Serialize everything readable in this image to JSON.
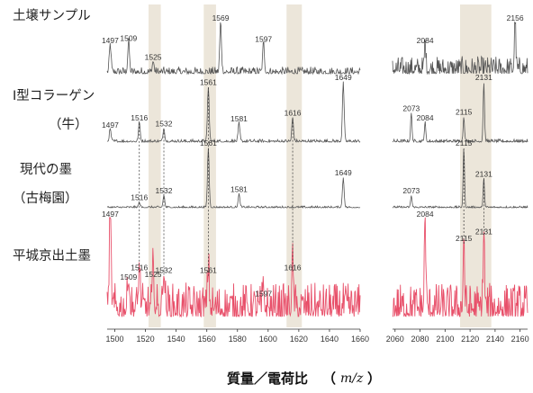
{
  "chart_data": {
    "type": "line",
    "xlabel_main": "質量／電荷比",
    "xlabel_unit_open": "（",
    "xlabel_unit": "m/z",
    "xlabel_unit_close": "）",
    "colors": {
      "black_trace": "#555555",
      "red_trace": "#e8506a",
      "band": "#ece6da",
      "axis": "#333333"
    },
    "panels": [
      {
        "name": "left",
        "xlim": [
          1495,
          1660
        ],
        "ticks": [
          1500,
          1520,
          1540,
          1560,
          1580,
          1600,
          1620,
          1640,
          1660
        ]
      },
      {
        "name": "right",
        "xlim": [
          2058,
          2166
        ],
        "ticks": [
          2060,
          2080,
          2100,
          2120,
          2140,
          2160
        ]
      }
    ],
    "highlight_bands": [
      [
        1522,
        1530
      ],
      [
        1558,
        1566
      ],
      [
        1612,
        1622
      ],
      [
        2112,
        2137
      ]
    ],
    "reference_lines": [
      {
        "x": 1516,
        "from": 1,
        "to": 3
      },
      {
        "x": 1532,
        "from": 1,
        "to": 3
      },
      {
        "x": 1561,
        "from": 1,
        "to": 3
      },
      {
        "x": 1616,
        "from": 1,
        "to": 3
      },
      {
        "x": 2115,
        "from": 2,
        "to": 3
      },
      {
        "x": 2131,
        "from": 2,
        "to": 3
      }
    ],
    "series": [
      {
        "name": "土壌サンプル",
        "color": "black",
        "peaks": [
          {
            "x": 1497,
            "y": 0.55,
            "label": "1497"
          },
          {
            "x": 1509,
            "y": 0.6,
            "label": "1509"
          },
          {
            "x": 1525,
            "y": 0.22,
            "label": "1525"
          },
          {
            "x": 1569,
            "y": 1.0,
            "label": "1569"
          },
          {
            "x": 1597,
            "y": 0.58,
            "label": "1597"
          },
          {
            "x": 2084,
            "y": 0.55,
            "label": "2084"
          },
          {
            "x": 2156,
            "y": 1.0,
            "label": "2156"
          }
        ]
      },
      {
        "name": "I型コラーゲン",
        "name2": "（牛）",
        "color": "black",
        "peaks": [
          {
            "x": 1497,
            "y": 0.2,
            "label": "1497"
          },
          {
            "x": 1516,
            "y": 0.32,
            "label": "1516"
          },
          {
            "x": 1532,
            "y": 0.22,
            "label": "1532"
          },
          {
            "x": 1561,
            "y": 0.92,
            "label": "1561"
          },
          {
            "x": 1581,
            "y": 0.3,
            "label": "1581"
          },
          {
            "x": 1616,
            "y": 0.4,
            "label": "1616"
          },
          {
            "x": 1649,
            "y": 1.0,
            "label": "1649"
          },
          {
            "x": 2073,
            "y": 0.48,
            "label": "2073"
          },
          {
            "x": 2084,
            "y": 0.32,
            "label": "2084"
          },
          {
            "x": 2115,
            "y": 0.42,
            "label": "2115"
          },
          {
            "x": 2131,
            "y": 1.0,
            "label": "2131"
          }
        ]
      },
      {
        "name": "現代の墨",
        "name2": "（古梅園）",
        "color": "black",
        "peaks": [
          {
            "x": 1516,
            "y": 0.08,
            "label": "1516"
          },
          {
            "x": 1532,
            "y": 0.2,
            "label": "1532"
          },
          {
            "x": 1561,
            "y": 1.0,
            "label": "1561"
          },
          {
            "x": 1581,
            "y": 0.22,
            "label": "1581"
          },
          {
            "x": 1649,
            "y": 0.5,
            "label": "1649"
          },
          {
            "x": 2073,
            "y": 0.2,
            "label": "2073"
          },
          {
            "x": 2115,
            "y": 1.0,
            "label": "2115"
          },
          {
            "x": 2131,
            "y": 0.48,
            "label": "2131"
          }
        ]
      },
      {
        "name": "平城京出土墨",
        "color": "red",
        "peaks": [
          {
            "x": 1497,
            "y": 1.0,
            "label": "1497"
          },
          {
            "x": 1509,
            "y": 0.35,
            "label": "1509"
          },
          {
            "x": 1516,
            "y": 0.45,
            "label": "1516"
          },
          {
            "x": 1525,
            "y": 0.38,
            "label": "1525"
          },
          {
            "x": 1532,
            "y": 0.42,
            "label": "1532"
          },
          {
            "x": 1561,
            "y": 0.42,
            "label": "1561"
          },
          {
            "x": 1597,
            "y": 0.18,
            "label": "1597"
          },
          {
            "x": 1616,
            "y": 0.45,
            "label": "1616"
          },
          {
            "x": 2084,
            "y": 1.0,
            "label": "2084"
          },
          {
            "x": 2115,
            "y": 0.75,
            "label": "2115"
          },
          {
            "x": 2131,
            "y": 0.82,
            "label": "2131"
          }
        ]
      }
    ]
  }
}
